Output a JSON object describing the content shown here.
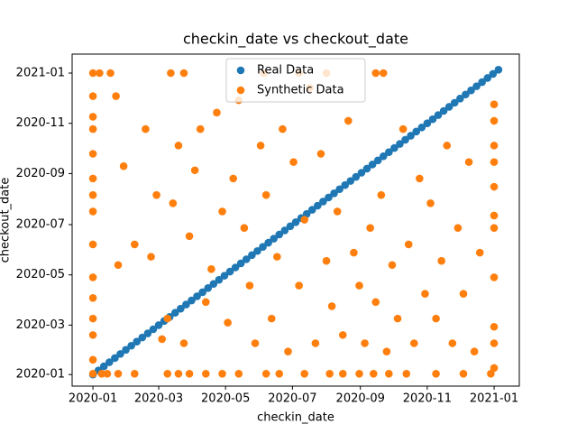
{
  "chart_data": {
    "type": "scatter",
    "title": "checkin_date vs checkout_date",
    "x_label": "checkin_date",
    "y_label": "checkout_date",
    "xlim": [
      18243,
      18651
    ],
    "ylim": [
      18248,
      18651
    ],
    "xticks": [
      {
        "value": 18262,
        "label": "2020-01"
      },
      {
        "value": 18322,
        "label": "2020-03"
      },
      {
        "value": 18383,
        "label": "2020-05"
      },
      {
        "value": 18444,
        "label": "2020-07"
      },
      {
        "value": 18506,
        "label": "2020-09"
      },
      {
        "value": 18567,
        "label": "2020-11"
      },
      {
        "value": 18628,
        "label": "2021-01"
      }
    ],
    "yticks": [
      {
        "value": 18262,
        "label": "2020-01"
      },
      {
        "value": 18322,
        "label": "2020-03"
      },
      {
        "value": 18383,
        "label": "2020-05"
      },
      {
        "value": 18444,
        "label": "2020-07"
      },
      {
        "value": 18506,
        "label": "2020-09"
      },
      {
        "value": 18567,
        "label": "2020-11"
      },
      {
        "value": 18628,
        "label": "2021-01"
      }
    ],
    "legend": "upper center",
    "series": [
      {
        "name": "Real Data",
        "color": "#1f77b4",
        "x": [
          18262,
          18267,
          18272,
          18277,
          18282,
          18287,
          18292,
          18297,
          18302,
          18307,
          18312,
          18317,
          18322,
          18327,
          18332,
          18337,
          18342,
          18347,
          18352,
          18357,
          18362,
          18367,
          18372,
          18377,
          18382,
          18387,
          18392,
          18397,
          18402,
          18407,
          18412,
          18417,
          18422,
          18427,
          18432,
          18437,
          18442,
          18447,
          18452,
          18457,
          18462,
          18467,
          18472,
          18477,
          18482,
          18487,
          18492,
          18497,
          18502,
          18507,
          18512,
          18517,
          18522,
          18527,
          18532,
          18537,
          18542,
          18547,
          18552,
          18557,
          18562,
          18567,
          18572,
          18577,
          18582,
          18587,
          18592,
          18597,
          18602,
          18607,
          18612,
          18617,
          18622,
          18627,
          18632
        ],
        "values": [
          18262,
          18267,
          18272,
          18277,
          18282,
          18287,
          18292,
          18297,
          18302,
          18307,
          18312,
          18317,
          18322,
          18327,
          18332,
          18337,
          18342,
          18347,
          18352,
          18357,
          18362,
          18367,
          18372,
          18377,
          18382,
          18387,
          18392,
          18397,
          18402,
          18407,
          18412,
          18417,
          18422,
          18427,
          18432,
          18437,
          18442,
          18447,
          18452,
          18457,
          18462,
          18467,
          18472,
          18477,
          18482,
          18487,
          18492,
          18497,
          18502,
          18507,
          18512,
          18517,
          18522,
          18527,
          18532,
          18537,
          18542,
          18547,
          18552,
          18557,
          18562,
          18567,
          18572,
          18577,
          18582,
          18587,
          18592,
          18597,
          18602,
          18607,
          18612,
          18617,
          18622,
          18627,
          18632
        ]
      },
      {
        "name": "Synthetic Data",
        "color": "#ff7f0e",
        "x": [
          18262,
          18270,
          18275,
          18285,
          18300,
          18330,
          18340,
          18350,
          18365,
          18380,
          18395,
          18420,
          18432,
          18455,
          18478,
          18490,
          18505,
          18518,
          18532,
          18548,
          18575,
          18600,
          18625,
          18262,
          18268,
          18278,
          18333,
          18345,
          18418,
          18450,
          18475,
          18520,
          18527,
          18262,
          18262,
          18262,
          18262,
          18262,
          18262,
          18262,
          18262,
          18262,
          18262,
          18262,
          18262,
          18262,
          18628,
          18628,
          18628,
          18628,
          18628,
          18628,
          18628,
          18628,
          18628,
          18628,
          18628,
          18283,
          18285,
          18290,
          18300,
          18310,
          18315,
          18320,
          18325,
          18330,
          18335,
          18340,
          18345,
          18350,
          18355,
          18360,
          18365,
          18370,
          18375,
          18380,
          18385,
          18390,
          18395,
          18400,
          18405,
          18410,
          18415,
          18420,
          18425,
          18430,
          18435,
          18440,
          18445,
          18450,
          18455,
          18460,
          18465,
          18470,
          18475,
          18480,
          18485,
          18490,
          18495,
          18500,
          18505,
          18510,
          18515,
          18520,
          18525,
          18530,
          18535,
          18540,
          18545,
          18550,
          18555,
          18560,
          18565,
          18570,
          18575,
          18580,
          18585,
          18590,
          18595,
          18600,
          18605,
          18610,
          18615
        ],
        "values": [
          18263,
          18263,
          18263,
          18263,
          18263,
          18263,
          18263,
          18263,
          18263,
          18263,
          18263,
          18263,
          18263,
          18263,
          18263,
          18263,
          18263,
          18263,
          18263,
          18263,
          18263,
          18263,
          18263,
          18628,
          18628,
          18628,
          18628,
          18628,
          18628,
          18628,
          18628,
          18628,
          18628,
          18280,
          18310,
          18330,
          18355,
          18380,
          18420,
          18460,
          18480,
          18500,
          18530,
          18560,
          18575,
          18600,
          18270,
          18300,
          18320,
          18380,
          18440,
          18455,
          18490,
          18520,
          18540,
          18570,
          18590,
          18600,
          18395,
          18515,
          18420,
          18560,
          18405,
          18480,
          18305,
          18330,
          18470,
          18540,
          18300,
          18430,
          18510,
          18560,
          18350,
          18390,
          18580,
          18460,
          18325,
          18500,
          18595,
          18440,
          18370,
          18300,
          18540,
          18480,
          18330,
          18405,
          18560,
          18290,
          18520,
          18370,
          18450,
          18610,
          18300,
          18530,
          18400,
          18345,
          18460,
          18310,
          18570,
          18410,
          18370,
          18300,
          18440,
          18350,
          18480,
          18290,
          18395,
          18330,
          18560,
          18420,
          18300,
          18500,
          18360,
          18470,
          18330,
          18400,
          18540,
          18300,
          18440,
          18360,
          18520,
          18290,
          18410
        ]
      }
    ]
  }
}
